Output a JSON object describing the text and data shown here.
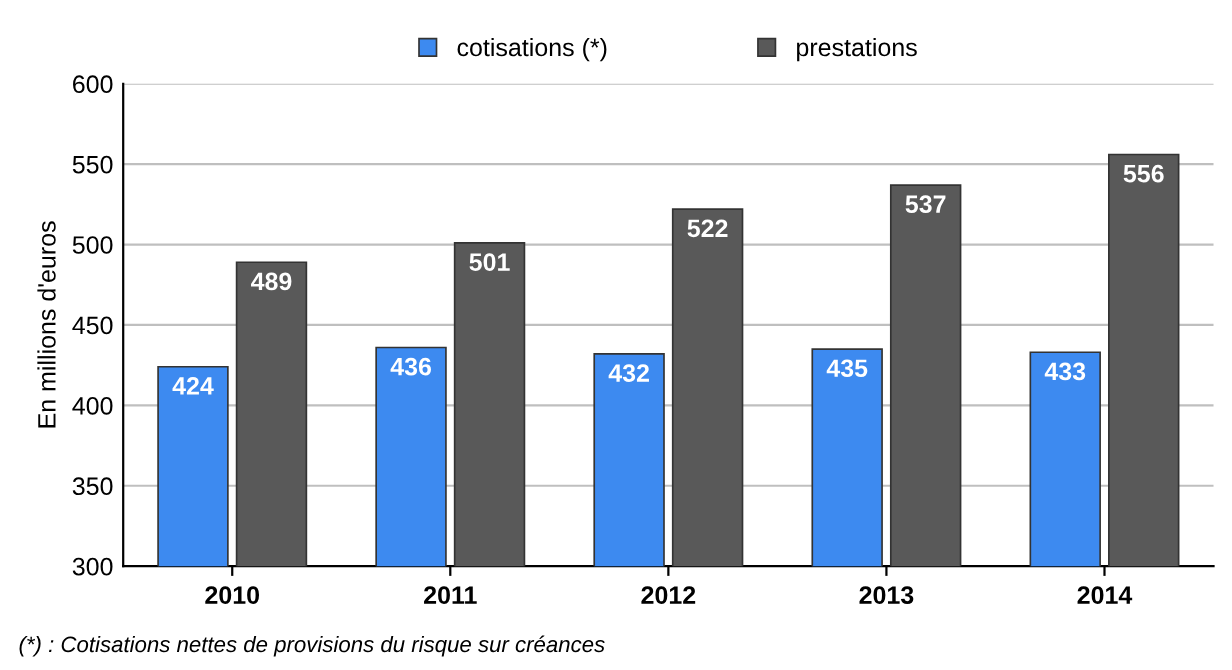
{
  "chart_data": {
    "type": "bar",
    "ylabel": "En millions d'euros",
    "categories": [
      "2010",
      "2011",
      "2012",
      "2013",
      "2014"
    ],
    "series": [
      {
        "name": "cotisations (*)",
        "color": "#3d8af0",
        "values": [
          424,
          436,
          432,
          435,
          433
        ]
      },
      {
        "name": "prestations",
        "color": "#595959",
        "values": [
          489,
          501,
          522,
          537,
          556
        ]
      }
    ],
    "ylim": [
      300,
      600
    ],
    "yticks": [
      300,
      350,
      400,
      450,
      500,
      550,
      600
    ],
    "grid": "y",
    "legend": "top",
    "data_labels": true,
    "annotations": [
      "(*) : Cotisations nettes de provisions du risque sur créances"
    ]
  }
}
